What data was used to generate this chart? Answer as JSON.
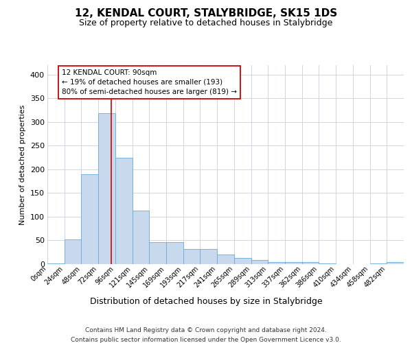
{
  "title": "12, KENDAL COURT, STALYBRIDGE, SK15 1DS",
  "subtitle": "Size of property relative to detached houses in Stalybridge",
  "xlabel": "Distribution of detached houses by size in Stalybridge",
  "ylabel": "Number of detached properties",
  "bar_color": "#c8d9ee",
  "bar_edge_color": "#6aaad4",
  "background_color": "#ffffff",
  "grid_color": "#c8d0d8",
  "annotation_line_color": "#cc0000",
  "annotation_box_color": "#cc0000",
  "annotation_text_line1": "12 KENDAL COURT: 90sqm",
  "annotation_text_line2": "← 19% of detached houses are smaller (193)",
  "annotation_text_line3": "80% of semi-detached houses are larger (819) →",
  "footer_line1": "Contains HM Land Registry data © Crown copyright and database right 2024.",
  "footer_line2": "Contains public sector information licensed under the Open Government Licence v3.0.",
  "bin_labels": [
    "0sqm",
    "24sqm",
    "48sqm",
    "72sqm",
    "96sqm",
    "121sqm",
    "145sqm",
    "169sqm",
    "193sqm",
    "217sqm",
    "241sqm",
    "265sqm",
    "289sqm",
    "313sqm",
    "337sqm",
    "362sqm",
    "386sqm",
    "410sqm",
    "434sqm",
    "458sqm",
    "482sqm"
  ],
  "bar_values": [
    2,
    52,
    190,
    318,
    225,
    113,
    46,
    46,
    32,
    32,
    20,
    13,
    8,
    5,
    4,
    4,
    1,
    0,
    0,
    1,
    4
  ],
  "ylim": [
    0,
    420
  ],
  "yticks": [
    0,
    50,
    100,
    150,
    200,
    250,
    300,
    350,
    400
  ]
}
